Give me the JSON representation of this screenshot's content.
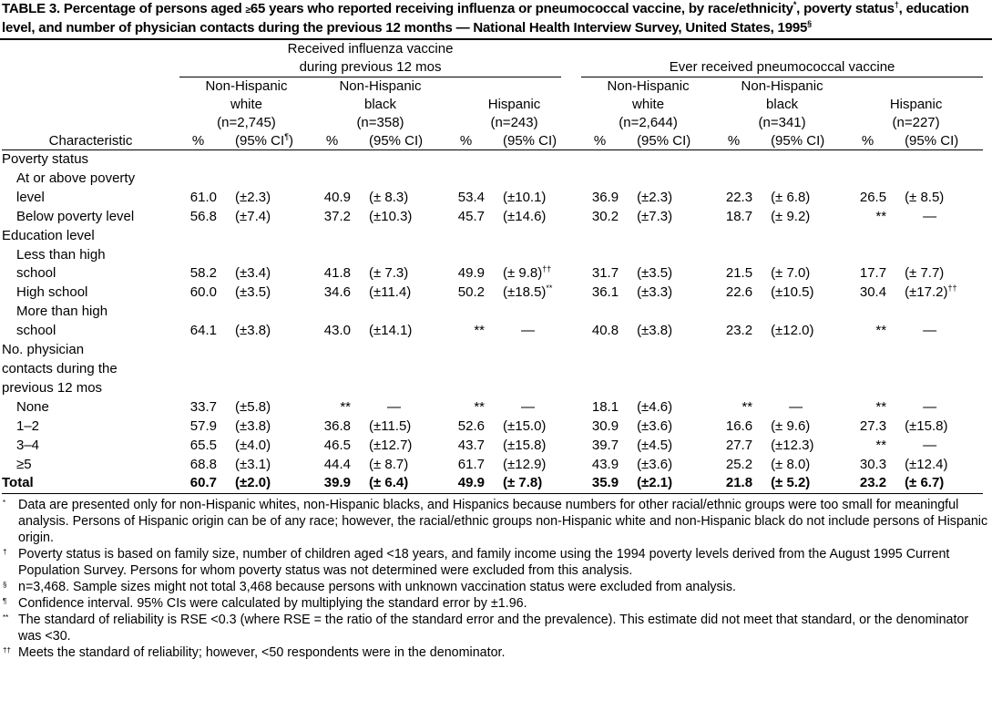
{
  "title": {
    "label": "TABLE 3.",
    "parts": [
      " Percentage of persons aged ",
      "≥",
      "65 years who reported receiving influenza or pneumococcal vaccine, by race/ethnicity",
      "*",
      ", poverty status",
      "†",
      ", education level, and number of physician contacts during the previous 12 months — National Health Interview Survey, United States, 1995",
      "§"
    ]
  },
  "columns": {
    "stub": "Characteristic",
    "groups": [
      {
        "title": [
          "Received influenza vaccine",
          "during previous 12 mos"
        ],
        "subgroups": [
          {
            "name": [
              "Non-Hispanic",
              "white",
              "(n=2,745)"
            ],
            "pct": "%",
            "ci": {
              "text": "(95% CI",
              "note": "¶",
              "tail": ")"
            }
          },
          {
            "name": [
              "Non-Hispanic",
              "black",
              "(n=358)"
            ],
            "pct": "%",
            "ci": "(95% CI)"
          },
          {
            "name": [
              "Hispanic",
              "(n=243)"
            ],
            "pct": "%",
            "ci": "(95% CI)"
          }
        ]
      },
      {
        "title": [
          "Ever received pneumococcal vaccine"
        ],
        "subgroups": [
          {
            "name": [
              "Non-Hispanic",
              "white",
              "(n=2,644)"
            ],
            "pct": "%",
            "ci": "(95% CI)"
          },
          {
            "name": [
              "Non-Hispanic",
              "black",
              "(n=341)"
            ],
            "pct": "%",
            "ci": "(95% CI)"
          },
          {
            "name": [
              "Hispanic",
              "(n=227)"
            ],
            "pct": "%",
            "ci": "(95% CI)"
          }
        ]
      }
    ]
  },
  "rows": [
    {
      "label": [
        "Poverty status"
      ]
    },
    {
      "label": [
        "At or above poverty",
        "level"
      ],
      "cells": [
        "61.0",
        "(±2.3)",
        "40.9",
        "(± 8.3)",
        "53.4",
        "(±10.1)",
        "36.9",
        "(±2.3)",
        "22.3",
        "(± 6.8)",
        "26.5",
        "(± 8.5)"
      ]
    },
    {
      "label": [
        "Below poverty level"
      ],
      "cells": [
        "56.8",
        "(±7.4)",
        "37.2",
        "(±10.3)",
        "45.7",
        "(±14.6)",
        "30.2",
        "(±7.3)",
        "18.7",
        "(± 9.2)",
        "**",
        "—"
      ]
    },
    {
      "label": [
        "Education level"
      ]
    },
    {
      "label": [
        "Less than high",
        "school"
      ],
      "cells": [
        "58.2",
        "(±3.4)",
        "41.8",
        "(± 7.3)",
        "49.9",
        {
          "text": "(± 9.8)",
          "note": "††"
        },
        "31.7",
        "(±3.5)",
        "21.5",
        "(± 7.0)",
        "17.7",
        "(± 7.7)"
      ]
    },
    {
      "label": [
        "High school"
      ],
      "cells": [
        "60.0",
        "(±3.5)",
        "34.6",
        "(±11.4)",
        "50.2",
        {
          "text": "(±18.5)",
          "note": "**"
        },
        "36.1",
        "(±3.3)",
        "22.6",
        "(±10.5)",
        "30.4",
        {
          "text": "(±17.2)",
          "note": "††"
        }
      ]
    },
    {
      "label": [
        "More than high",
        "school"
      ],
      "cells": [
        "64.1",
        "(±3.8)",
        "43.0",
        "(±14.1)",
        "**",
        "—",
        "40.8",
        "(±3.8)",
        "23.2",
        "(±12.0)",
        "**",
        "—"
      ]
    },
    {
      "label": [
        "No. physician",
        "contacts during the",
        "previous 12 mos"
      ]
    },
    {
      "label": [
        "None"
      ],
      "cells": [
        "33.7",
        "(±5.8)",
        "**",
        "—",
        "**",
        "—",
        "18.1",
        "(±4.6)",
        "**",
        "—",
        "**",
        "—"
      ]
    },
    {
      "label": [
        "1–2"
      ],
      "cells": [
        "57.9",
        "(±3.8)",
        "36.8",
        "(±11.5)",
        "52.6",
        "(±15.0)",
        "30.9",
        "(±3.6)",
        "16.6",
        "(± 9.6)",
        "27.3",
        "(±15.8)"
      ]
    },
    {
      "label": [
        "3–4"
      ],
      "cells": [
        "65.5",
        "(±4.0)",
        "46.5",
        "(±12.7)",
        "43.7",
        "(±15.8)",
        "39.7",
        "(±4.5)",
        "27.7",
        "(±12.3)",
        "**",
        "—"
      ]
    },
    {
      "label": [
        "≥5"
      ],
      "cells": [
        "68.8",
        "(±3.1)",
        "44.4",
        "(± 8.7)",
        "61.7",
        "(±12.9)",
        "43.9",
        "(±3.6)",
        "25.2",
        "(± 8.0)",
        "30.3",
        "(±12.4)"
      ]
    }
  ],
  "total": {
    "label": "Total",
    "cells": [
      "60.7",
      "(±2.0)",
      "39.9",
      "(± 6.4)",
      "49.9",
      "(± 7.8)",
      "35.9",
      "(±2.1)",
      "21.8",
      "(± 5.2)",
      "23.2",
      "(± 6.7)"
    ]
  },
  "footnotes": [
    {
      "mark": "*",
      "text": "Data are presented only for non-Hispanic whites, non-Hispanic blacks, and Hispanics because numbers for other racial/ethnic groups were too small for meaningful analysis. Persons of Hispanic origin can be of any race; however, the racial/ethnic groups non-Hispanic white and non-Hispanic black do not include persons of Hispanic origin."
    },
    {
      "mark": "†",
      "text": "Poverty status is based on family size, number of children aged <18 years, and family income using the 1994 poverty levels derived from the August 1995 Current Population Survey. Persons for whom poverty status was not determined were excluded from this analysis."
    },
    {
      "mark": "§",
      "text": "n=3,468. Sample sizes might not total 3,468 because persons with unknown vaccination status were excluded from analysis."
    },
    {
      "mark": "¶",
      "text": "Confidence interval. 95% CIs were calculated by multiplying the standard error by ±1.96."
    },
    {
      "mark": "**",
      "text": "The standard of reliability is RSE <0.3 (where RSE = the ratio of the standard error and the prevalence). This estimate did not meet that standard, or the denominator was <30."
    },
    {
      "mark": "††",
      "text": "Meets the standard of reliability; however, <50 respondents were in the denominator."
    }
  ]
}
